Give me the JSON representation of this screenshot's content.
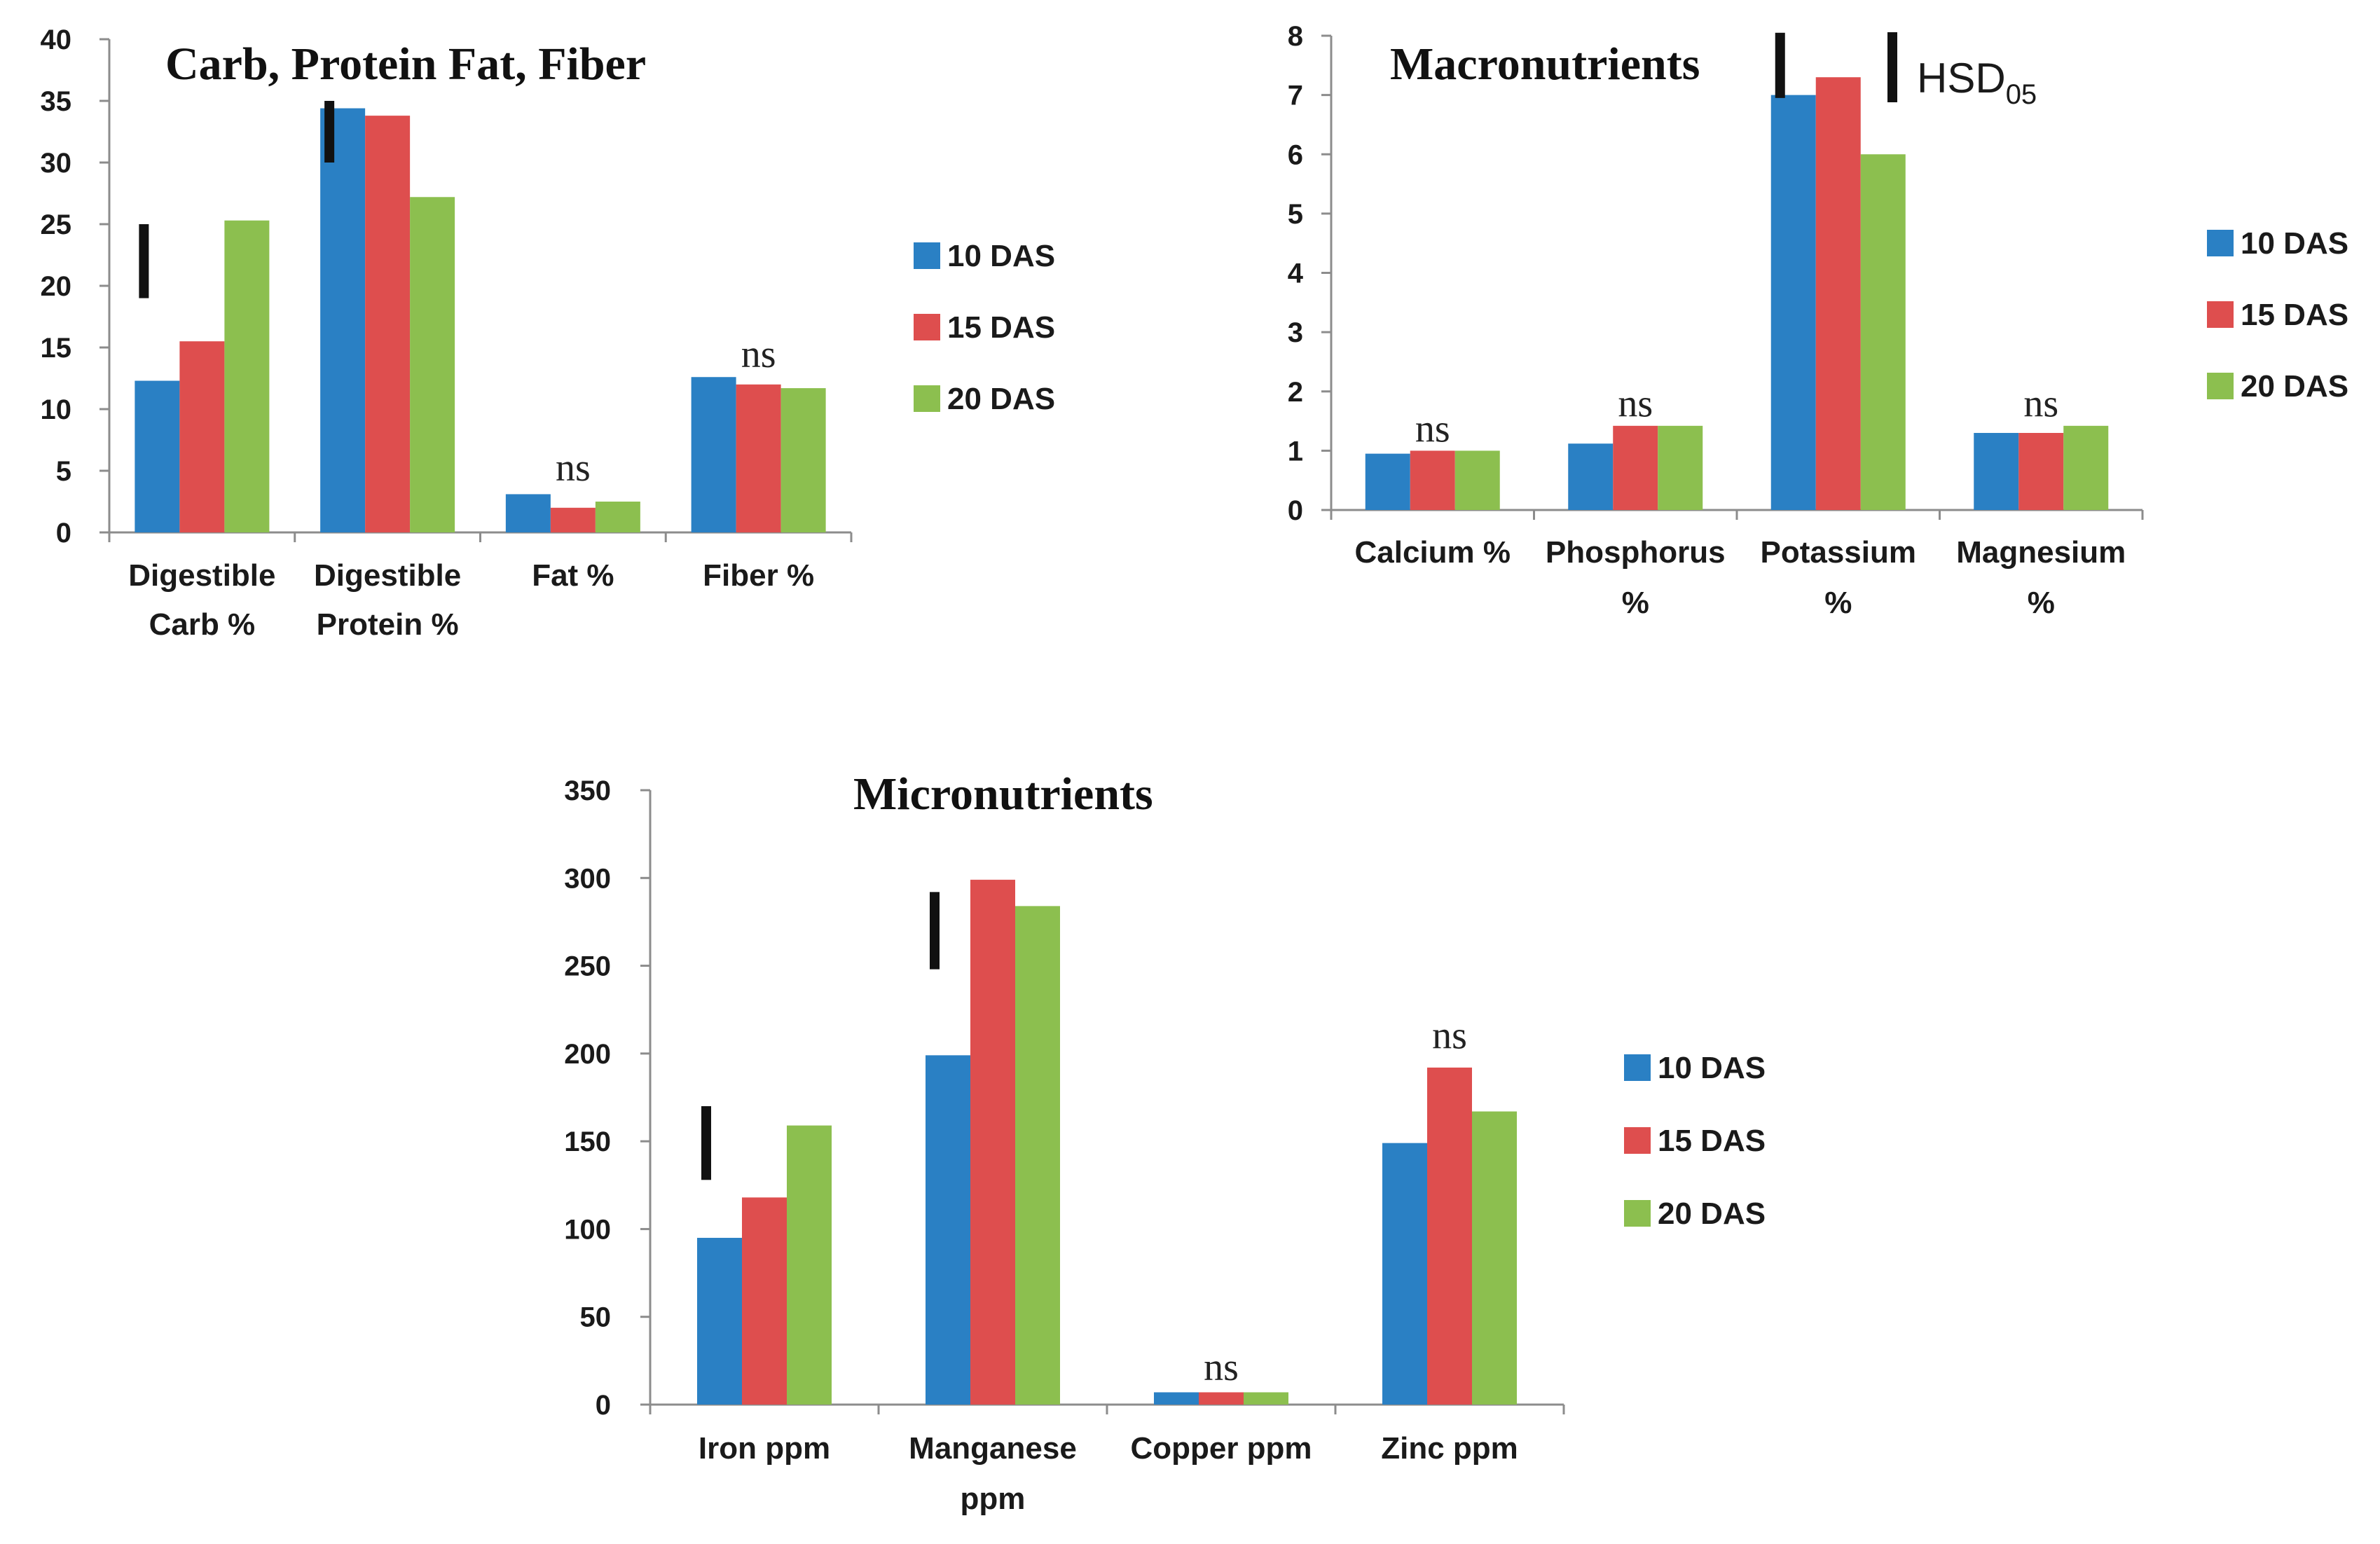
{
  "series_style": [
    {
      "name": "10 DAS",
      "color": "#2a80c4"
    },
    {
      "name": "15 DAS",
      "color": "#de4e4e"
    },
    {
      "name": "20 DAS",
      "color": "#8cbf4f"
    }
  ],
  "hsd_label": "HSD",
  "hsd_subscript": "05",
  "chart_data": [
    {
      "type": "bar",
      "title": "Carb, Protein Fat, Fiber",
      "categories": [
        [
          "Digestible",
          "Carb %"
        ],
        [
          "Digestible",
          "Protein %"
        ],
        [
          "Fat %"
        ],
        [
          "Fiber %"
        ]
      ],
      "series": [
        {
          "name": "10 DAS",
          "values": [
            12.3,
            34.4,
            3.1,
            12.6
          ]
        },
        {
          "name": "15 DAS",
          "values": [
            15.5,
            33.8,
            2.0,
            12.0
          ]
        },
        {
          "name": "20 DAS",
          "values": [
            25.3,
            27.2,
            2.5,
            11.7
          ]
        }
      ],
      "ylim": [
        0,
        40
      ],
      "yticks": [
        0,
        5,
        10,
        15,
        20,
        25,
        30,
        35,
        40
      ],
      "xlabel": "",
      "ylabel": "",
      "legend": [
        "10 DAS",
        "15 DAS",
        "20 DAS"
      ],
      "annotations": [
        {
          "category_index": 2,
          "text": "ns",
          "at_value": 4.2
        },
        {
          "category_index": 3,
          "text": "ns",
          "at_value": 13.4
        }
      ],
      "hsd_bars": [
        {
          "category_index": 0,
          "from": 19.0,
          "to": 25.0
        },
        {
          "category_index": 1,
          "from": 30.0,
          "to": 35.0
        }
      ]
    },
    {
      "type": "bar",
      "title": "Macronutrients",
      "categories": [
        [
          "Calcium %"
        ],
        [
          "Phosphorus",
          "%"
        ],
        [
          "Potassium",
          "%"
        ],
        [
          "Magnesium",
          "%"
        ]
      ],
      "series": [
        {
          "name": "10 DAS",
          "values": [
            0.95,
            1.12,
            7.0,
            1.3
          ]
        },
        {
          "name": "15 DAS",
          "values": [
            1.0,
            1.42,
            7.3,
            1.3
          ]
        },
        {
          "name": "20 DAS",
          "values": [
            1.0,
            1.42,
            6.0,
            1.42
          ]
        }
      ],
      "ylim": [
        0,
        8
      ],
      "yticks": [
        0,
        1,
        2,
        3,
        4,
        5,
        6,
        7,
        8
      ],
      "xlabel": "",
      "ylabel": "",
      "legend": [
        "10 DAS",
        "15 DAS",
        "20 DAS"
      ],
      "annotations": [
        {
          "category_index": 0,
          "text": "ns",
          "at_value": 1.15
        },
        {
          "category_index": 1,
          "text": "ns",
          "at_value": 1.58
        },
        {
          "category_index": 3,
          "text": "ns",
          "at_value": 1.58
        }
      ],
      "hsd_bars": [
        {
          "category_index": 2,
          "from": 6.95,
          "to": 8.05
        }
      ]
    },
    {
      "type": "bar",
      "title": "Micronutrients",
      "categories": [
        [
          "Iron ppm"
        ],
        [
          "Manganese",
          "ppm"
        ],
        [
          "Copper ppm"
        ],
        [
          "Zinc ppm"
        ]
      ],
      "series": [
        {
          "name": "10 DAS",
          "values": [
            95,
            199,
            7,
            149
          ]
        },
        {
          "name": "15 DAS",
          "values": [
            118,
            299,
            7,
            192
          ]
        },
        {
          "name": "20 DAS",
          "values": [
            159,
            284,
            7,
            167
          ]
        }
      ],
      "ylim": [
        0,
        350
      ],
      "yticks": [
        0,
        50,
        100,
        150,
        200,
        250,
        300,
        350
      ],
      "xlabel": "",
      "ylabel": "",
      "legend": [
        "10 DAS",
        "15 DAS",
        "20 DAS"
      ],
      "annotations": [
        {
          "category_index": 2,
          "text": "ns",
          "at_value": 14
        },
        {
          "category_index": 3,
          "text": "ns",
          "at_value": 203
        }
      ],
      "hsd_bars": [
        {
          "category_index": 0,
          "from": 128,
          "to": 170
        },
        {
          "category_index": 1,
          "from": 248,
          "to": 292
        }
      ]
    }
  ]
}
